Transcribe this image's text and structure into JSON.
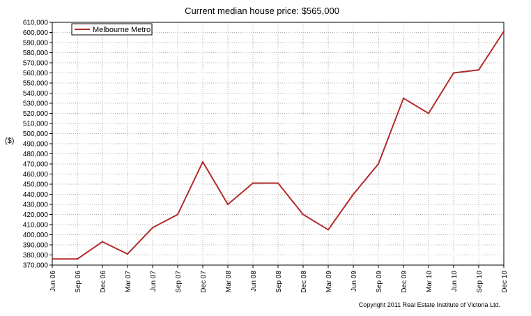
{
  "chart_data": {
    "type": "line",
    "title": "Current median house price: $565,000",
    "ylabel": "($)",
    "xlabel": "",
    "categories": [
      "Jun 06",
      "Sep 06",
      "Dec 06",
      "Mar 07",
      "Jun 07",
      "Sep 07",
      "Dec 07",
      "Mar 08",
      "Jun 08",
      "Sep 08",
      "Dec 08",
      "Mar 09",
      "Jun 09",
      "Sep 09",
      "Dec 09",
      "Mar 10",
      "Jun 10",
      "Sep 10",
      "Dec 10"
    ],
    "series": [
      {
        "name": "Melbourne Metro",
        "values": [
          376000,
          376000,
          393000,
          381000,
          407000,
          420000,
          472000,
          430000,
          451000,
          451000,
          420000,
          405000,
          440000,
          470000,
          535000,
          520000,
          560000,
          563000,
          601000
        ]
      }
    ],
    "ylim": [
      370000,
      610000
    ],
    "yticks": [
      "370,000",
      "380,000",
      "390,000",
      "400,000",
      "410,000",
      "420,000",
      "430,000",
      "440,000",
      "450,000",
      "460,000",
      "470,000",
      "480,000",
      "490,000",
      "500,000",
      "510,000",
      "520,000",
      "530,000",
      "540,000",
      "550,000",
      "560,000",
      "570,000",
      "580,000",
      "590,000",
      "600,000",
      "610,000"
    ],
    "grid": true,
    "legend_position": "top-left",
    "line_color": "#b22b2b"
  },
  "footer": {
    "copyright": "Copyright 2011 Real Estate Institute of Victoria Ltd."
  }
}
